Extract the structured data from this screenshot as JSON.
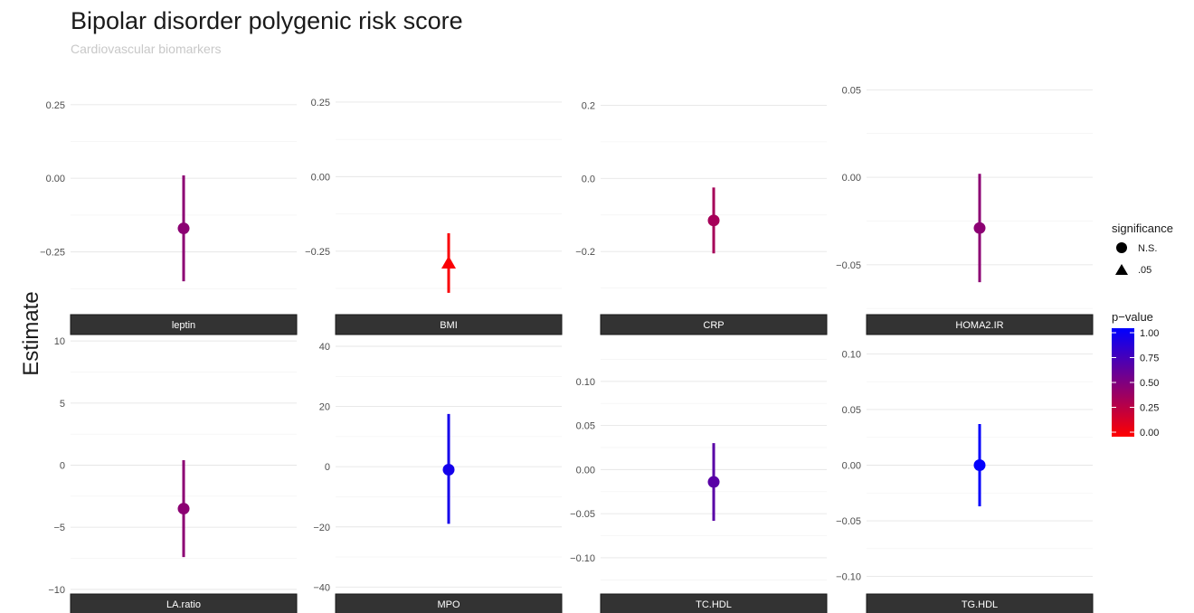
{
  "title": "Bipolar disorder polygenic risk score",
  "subtitle": "Cardiovascular biomarkers",
  "ylabel": "Estimate",
  "legend": {
    "shape_title": "significance",
    "shape_items": [
      {
        "label": "N.S.",
        "shape": "circle"
      },
      {
        "label": ".05",
        "shape": "triangle"
      }
    ],
    "color_title": "p−value",
    "color_ticks": [
      "1.00",
      "0.75",
      "0.50",
      "0.25",
      "0.00"
    ],
    "color_low": "#ff0000",
    "color_high": "#0000ff"
  },
  "chart_data": {
    "type": "scatter",
    "panels": [
      {
        "name": "leptin",
        "ylim": [
          -0.46,
          0.36
        ],
        "ticks": [
          0.25,
          0.0,
          -0.25
        ],
        "tick_labels": [
          "0.25",
          "0.00",
          "−0.25"
        ],
        "estimate": -0.17,
        "lower": -0.35,
        "upper": 0.01,
        "pvalue": 0.45,
        "significance": "N.S."
      },
      {
        "name": "BMI",
        "ylim": [
          -0.46,
          0.35
        ],
        "ticks": [
          0.25,
          0.0,
          -0.25
        ],
        "tick_labels": [
          "0.25",
          "0.00",
          "−0.25"
        ],
        "estimate": -0.29,
        "lower": -0.39,
        "upper": -0.19,
        "pvalue": 0.02,
        "significance": ".05"
      },
      {
        "name": "CRP",
        "ylim": [
          -0.37,
          0.29
        ],
        "ticks": [
          0.2,
          0.0,
          -0.2
        ],
        "tick_labels": [
          "0.2",
          "0.0",
          "−0.2"
        ],
        "estimate": -0.115,
        "lower": -0.205,
        "upper": -0.025,
        "pvalue": 0.35,
        "significance": "N.S."
      },
      {
        "name": "HOMA2.IR",
        "ylim": [
          -0.078,
          0.06
        ],
        "ticks": [
          0.05,
          0.0,
          -0.05
        ],
        "tick_labels": [
          "0.05",
          "0.00",
          "−0.05"
        ],
        "estimate": -0.029,
        "lower": -0.06,
        "upper": 0.002,
        "pvalue": 0.45,
        "significance": "N.S."
      },
      {
        "name": "LA.ratio",
        "ylim": [
          -10.3,
          10.3
        ],
        "ticks": [
          10,
          5,
          0,
          -5,
          -10
        ],
        "tick_labels": [
          "10",
          "5",
          "0",
          "−5",
          "−10"
        ],
        "estimate": -3.5,
        "lower": -7.4,
        "upper": 0.4,
        "pvalue": 0.45,
        "significance": "N.S."
      },
      {
        "name": "MPO",
        "ylim": [
          -42,
          43
        ],
        "ticks": [
          40,
          20,
          0,
          -20,
          -40
        ],
        "tick_labels": [
          "40",
          "20",
          "0",
          "−20",
          "−40"
        ],
        "estimate": -1.0,
        "lower": -19.0,
        "upper": 17.5,
        "pvalue": 0.92,
        "significance": "N.S."
      },
      {
        "name": "TC.HDL",
        "ylim": [
          -0.14,
          0.15
        ],
        "ticks": [
          0.1,
          0.05,
          0.0,
          -0.05,
          -0.1
        ],
        "tick_labels": [
          "0.10",
          "0.05",
          "0.00",
          "−0.05",
          "−0.10"
        ],
        "estimate": -0.014,
        "lower": -0.058,
        "upper": 0.03,
        "pvalue": 0.65,
        "significance": "N.S."
      },
      {
        "name": "TG.HDL",
        "ylim": [
          -0.115,
          0.115
        ],
        "ticks": [
          0.1,
          0.05,
          0.0,
          -0.05,
          -0.1
        ],
        "tick_labels": [
          "0.10",
          "0.05",
          "0.00",
          "−0.05",
          "−0.10"
        ],
        "estimate": 0.0,
        "lower": -0.037,
        "upper": 0.037,
        "pvalue": 0.99,
        "significance": "N.S."
      }
    ]
  }
}
